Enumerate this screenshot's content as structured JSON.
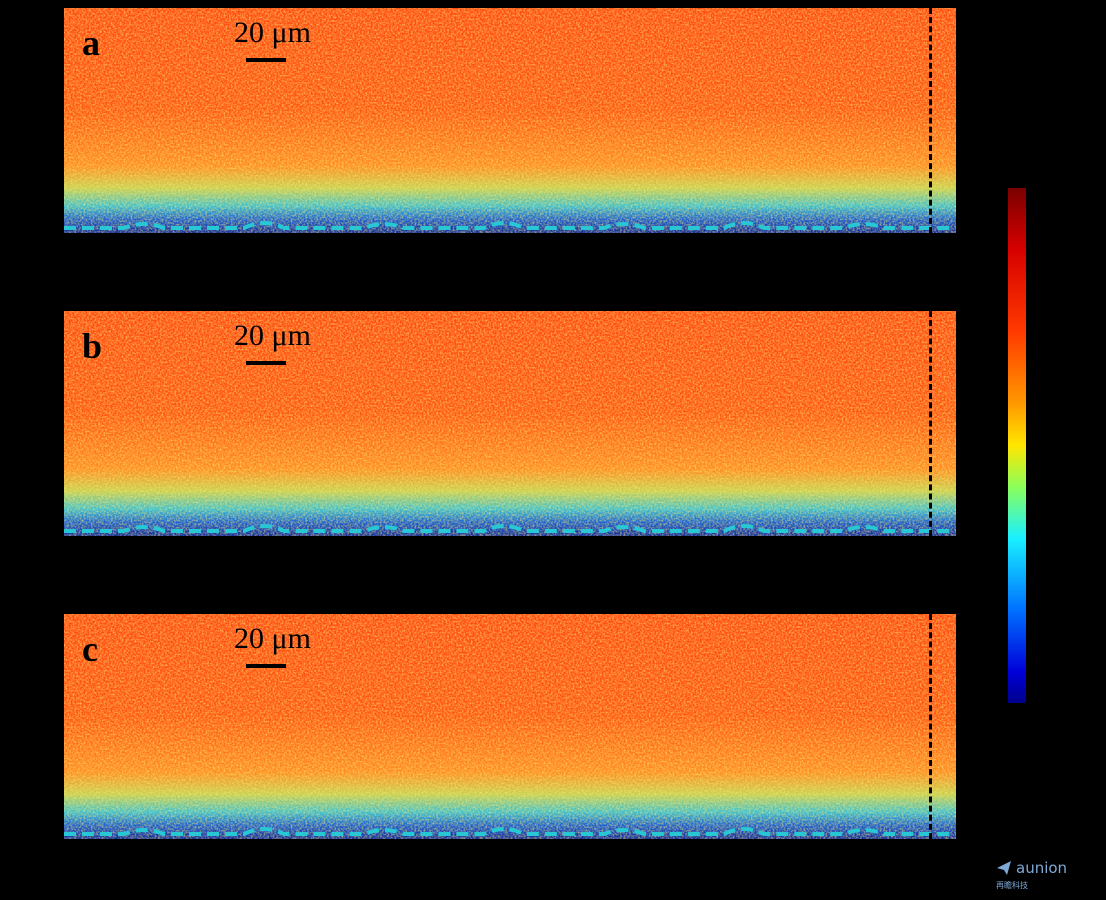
{
  "panels": [
    {
      "label": "a",
      "scale": "20 μm"
    },
    {
      "label": "b",
      "scale": "20 μm"
    },
    {
      "label": "c",
      "scale": "20 μm"
    }
  ],
  "logo": {
    "name": "aunion",
    "sub": "再瞻科技"
  },
  "colors": {
    "boundary": "#27c7d4",
    "vline": "#000000"
  }
}
